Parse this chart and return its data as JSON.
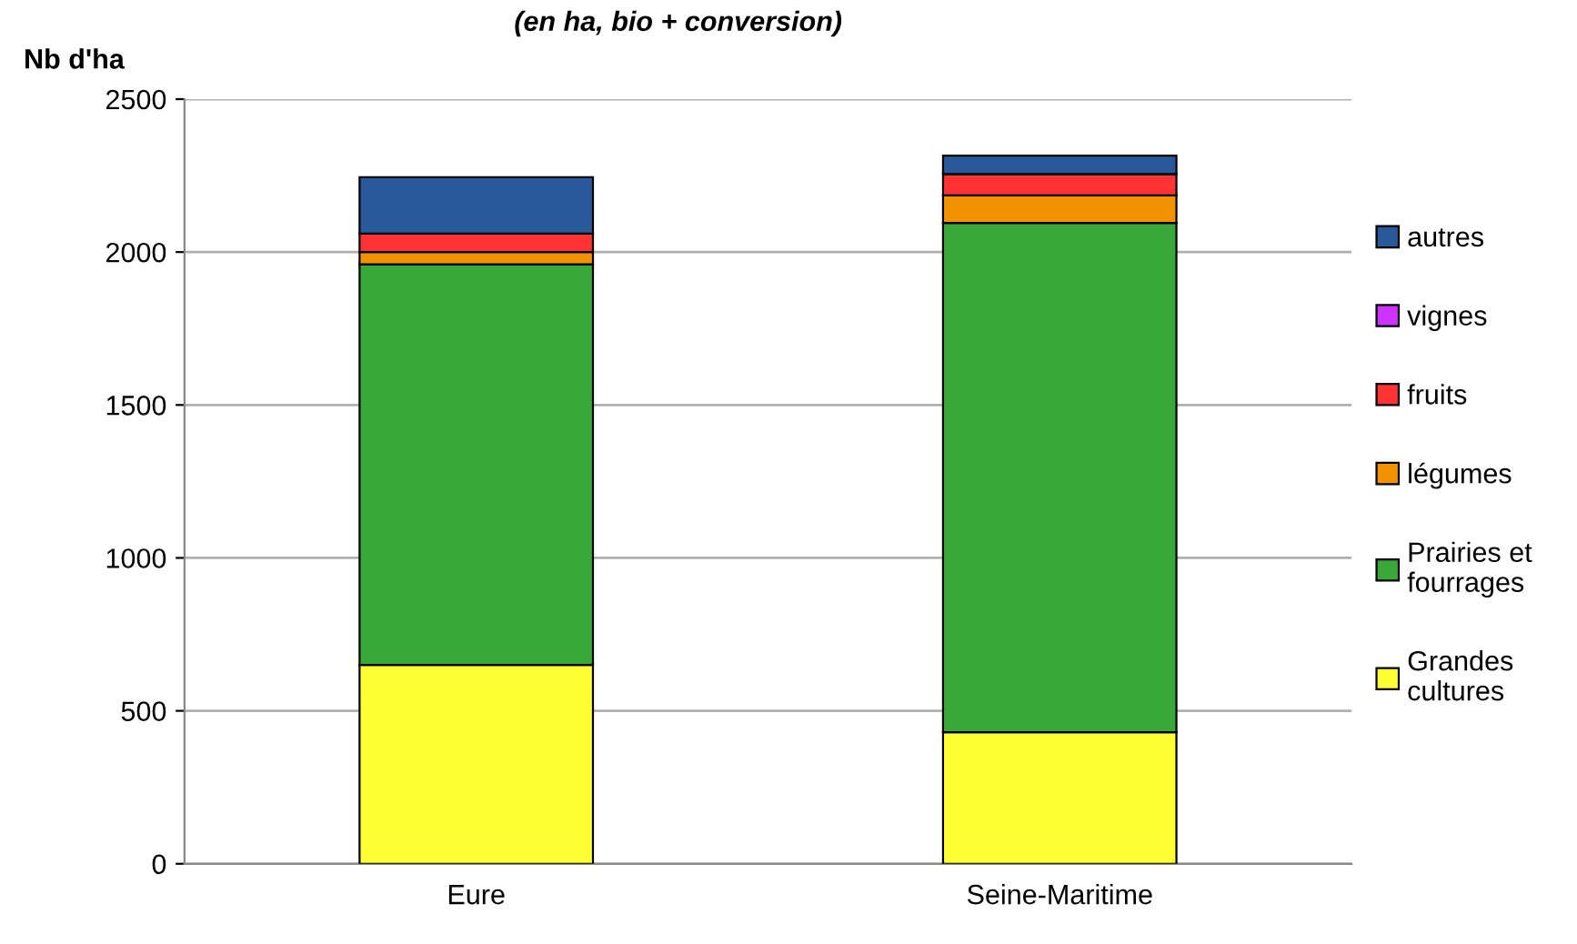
{
  "chart_data": {
    "type": "bar",
    "stacked": true,
    "subtitle": "(en ha, bio + conversion)",
    "ylabel": "Nb d'ha",
    "categories": [
      "Eure",
      "Seine-Maritime"
    ],
    "series": [
      {
        "name": "Grandes\ncultures",
        "color": "#ffff33",
        "values": [
          650,
          430
        ]
      },
      {
        "name": "Prairies et\nfourrages",
        "color": "#38a838",
        "values": [
          1310,
          1665
        ]
      },
      {
        "name": "légumes",
        "color": "#f39200",
        "values": [
          40,
          90
        ]
      },
      {
        "name": "fruits",
        "color": "#ff3333",
        "values": [
          60,
          70
        ]
      },
      {
        "name": "vignes",
        "color": "#cc33ff",
        "values": [
          0,
          0
        ]
      },
      {
        "name": "autres",
        "color": "#285a9a",
        "values": [
          185,
          60
        ]
      }
    ],
    "ylim": [
      0,
      2500
    ],
    "yticks": [
      0,
      500,
      1000,
      1500,
      2000,
      2500
    ],
    "grid": "y",
    "legend": "right"
  }
}
